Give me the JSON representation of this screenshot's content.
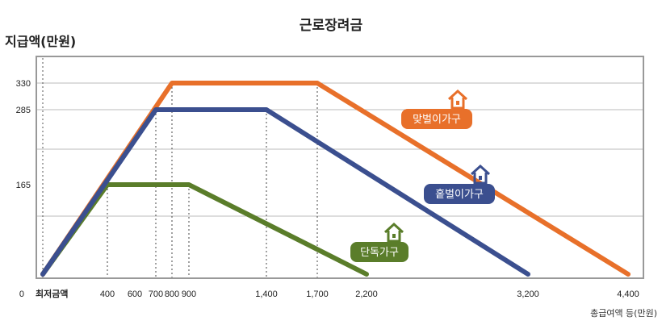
{
  "chart_data": {
    "type": "line",
    "title": "근로장려금",
    "ylabel": "지급액(만원)",
    "xlabel": "총급여액 등(만원)",
    "x_ticks": [
      "0",
      "최저금액",
      "400",
      "600",
      "700",
      "800",
      "900",
      "1,400",
      "1,700",
      "2,200",
      "3,200",
      "4,400"
    ],
    "y_ticks": [
      "0",
      "165",
      "285",
      "330"
    ],
    "grid": true,
    "series": [
      {
        "name": "단독가구",
        "color": "#5a7d2a",
        "points": [
          [
            "최저금액",
            0
          ],
          [
            400,
            165
          ],
          [
            900,
            165
          ],
          [
            2200,
            0
          ]
        ]
      },
      {
        "name": "맞벌이가구",
        "color": "#e8702a",
        "points": [
          [
            "최저금액",
            0
          ],
          [
            800,
            330
          ],
          [
            1700,
            330
          ],
          [
            4400,
            0
          ]
        ]
      },
      {
        "name": "홑벌이가구",
        "color": "#3b4f8f",
        "points": [
          [
            "최저금액",
            0
          ],
          [
            700,
            285
          ],
          [
            1400,
            285
          ],
          [
            3200,
            0
          ]
        ]
      }
    ]
  }
}
